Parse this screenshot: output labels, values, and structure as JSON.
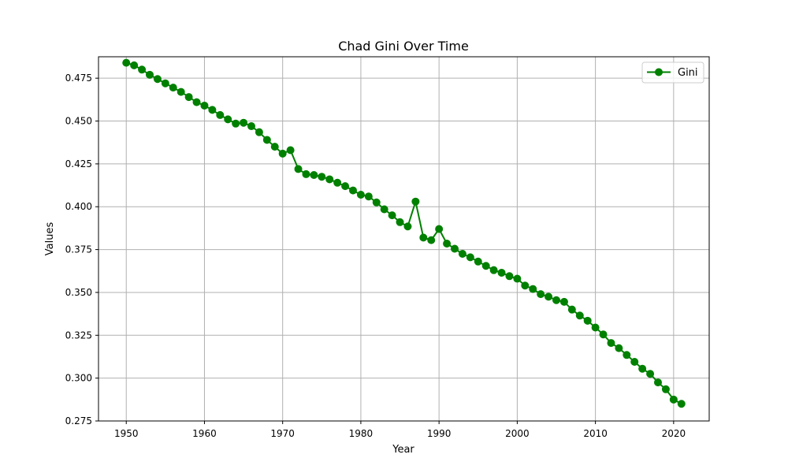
{
  "chart_data": {
    "type": "line",
    "title": "Chad Gini Over Time",
    "xlabel": "Year",
    "ylabel": "Values",
    "xlim": [
      1946.45,
      2024.55
    ],
    "ylim": [
      0.275,
      0.4875
    ],
    "xticks": [
      1950,
      1960,
      1970,
      1980,
      1990,
      2000,
      2010,
      2020
    ],
    "yticks": [
      0.275,
      0.3,
      0.325,
      0.35,
      0.375,
      0.4,
      0.425,
      0.45,
      0.475
    ],
    "xtick_labels": [
      "1950",
      "1960",
      "1970",
      "1980",
      "1990",
      "2000",
      "2010",
      "2020"
    ],
    "ytick_labels": [
      "0.275",
      "0.300",
      "0.325",
      "0.350",
      "0.375",
      "0.400",
      "0.425",
      "0.450",
      "0.475"
    ],
    "grid": true,
    "legend_position": "top-right",
    "series": [
      {
        "name": "Gini",
        "color": "#008000",
        "marker": "circle",
        "x": [
          1950,
          1951,
          1952,
          1953,
          1954,
          1955,
          1956,
          1957,
          1958,
          1959,
          1960,
          1961,
          1962,
          1963,
          1964,
          1965,
          1966,
          1967,
          1968,
          1969,
          1970,
          1971,
          1972,
          1973,
          1974,
          1975,
          1976,
          1977,
          1978,
          1979,
          1980,
          1981,
          1982,
          1983,
          1984,
          1985,
          1986,
          1987,
          1988,
          1989,
          1990,
          1991,
          1992,
          1993,
          1994,
          1995,
          1996,
          1997,
          1998,
          1999,
          2000,
          2001,
          2002,
          2003,
          2004,
          2005,
          2006,
          2007,
          2008,
          2009,
          2010,
          2011,
          2012,
          2013,
          2014,
          2015,
          2016,
          2017,
          2018,
          2019,
          2020,
          2021
        ],
        "values": [
          0.484,
          0.4825,
          0.48,
          0.477,
          0.4745,
          0.472,
          0.4695,
          0.467,
          0.464,
          0.461,
          0.459,
          0.4565,
          0.4535,
          0.451,
          0.4485,
          0.449,
          0.447,
          0.4435,
          0.439,
          0.435,
          0.431,
          0.433,
          0.422,
          0.419,
          0.4185,
          0.4175,
          0.416,
          0.414,
          0.412,
          0.4095,
          0.407,
          0.406,
          0.4025,
          0.3985,
          0.395,
          0.391,
          0.3885,
          0.403,
          0.382,
          0.3805,
          0.387,
          0.3785,
          0.3755,
          0.3725,
          0.3705,
          0.368,
          0.3655,
          0.363,
          0.3615,
          0.3595,
          0.358,
          0.354,
          0.352,
          0.349,
          0.3475,
          0.3455,
          0.3445,
          0.34,
          0.3365,
          0.3335,
          0.3295,
          0.3255,
          0.3205,
          0.3175,
          0.3135,
          0.3095,
          0.3055,
          0.3025,
          0.2975,
          0.2935,
          0.2875,
          0.285
        ]
      }
    ]
  }
}
